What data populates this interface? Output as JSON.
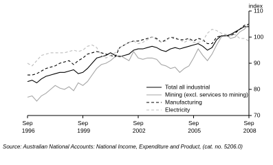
{
  "chart_data": {
    "type": "line",
    "y_label": "index",
    "source": "Source: Australian National Accounts: National Income, Expenditure and Product, (cat. no. 5206.0)",
    "categories": [
      "Sep 1996",
      null,
      null,
      null,
      null,
      null,
      null,
      null,
      null,
      null,
      null,
      null,
      "Sep 1999",
      null,
      null,
      null,
      null,
      null,
      null,
      null,
      null,
      null,
      null,
      null,
      "Sep 2002",
      null,
      null,
      null,
      null,
      null,
      null,
      null,
      null,
      null,
      null,
      null,
      "Sep 2005",
      null,
      null,
      null,
      null,
      null,
      null,
      null,
      null,
      null,
      null,
      null,
      "Sep 2008"
    ],
    "ylim": [
      70,
      110
    ],
    "yticks": [
      70,
      80,
      90,
      100,
      110
    ],
    "grid": false,
    "legend": "lower right",
    "series": [
      {
        "name": "Total all industrial",
        "color": "#000000",
        "dashed": false,
        "values": [
          83,
          83.5,
          82.5,
          84,
          85,
          85.5,
          86,
          86.5,
          86.5,
          87,
          87.5,
          86,
          86.5,
          88,
          90,
          92,
          92.5,
          93,
          94,
          93,
          92.5,
          93,
          93.5,
          95,
          95.5,
          95.5,
          96,
          96.5,
          96,
          95,
          94.5,
          95.5,
          96,
          95.5,
          96,
          96.5,
          97,
          97.5,
          96.5,
          95,
          96,
          99,
          100.5,
          100.5,
          101,
          102,
          103,
          104,
          104
        ]
      },
      {
        "name": "Mining (excl. services to mining)",
        "color": "#a6a6a6",
        "dashed": false,
        "values": [
          77,
          77.5,
          75.5,
          77.5,
          78.5,
          80,
          81.5,
          80.5,
          80,
          81,
          79.5,
          82.5,
          81.5,
          83,
          85.5,
          88,
          89.5,
          90,
          91,
          92.5,
          93,
          92,
          91,
          94.5,
          92,
          91.5,
          92,
          92,
          91.5,
          89.5,
          89,
          88,
          88.5,
          86.5,
          88,
          89,
          92,
          95.5,
          93,
          91,
          93.5,
          97,
          100,
          101,
          99.5,
          100,
          102,
          103,
          105
        ]
      },
      {
        "name": "Manufacturing",
        "color": "#000000",
        "dashed": true,
        "values": [
          85.5,
          85.5,
          86,
          87,
          88,
          88.5,
          89,
          90,
          90.5,
          91,
          89.5,
          91,
          92,
          93.5,
          94,
          94.5,
          94,
          93.5,
          93,
          92.5,
          96,
          97,
          98,
          98.5,
          98.5,
          99,
          99.5,
          100,
          99.5,
          98,
          99,
          100,
          99.5,
          99,
          99,
          99.5,
          98.5,
          99.5,
          99,
          97.5,
          97.5,
          100,
          100.5,
          100.5,
          100.5,
          101.5,
          103,
          104.5,
          105
        ]
      },
      {
        "name": "Electricity",
        "color": "#bdbdbd",
        "dashed": true,
        "values": [
          90,
          89,
          91,
          93,
          93.5,
          94,
          94,
          94,
          94,
          94.5,
          95,
          94.5,
          95,
          96.5,
          97,
          96,
          93,
          92,
          93,
          94,
          96,
          97,
          98,
          98.5,
          97.5,
          98,
          99,
          100,
          99,
          98,
          98.5,
          100,
          100,
          99,
          98,
          99,
          98,
          98,
          98.5,
          101.5,
          103,
          102.5,
          101.5,
          101,
          100.5,
          101,
          99.5,
          99.5,
          98.5
        ]
      }
    ]
  }
}
